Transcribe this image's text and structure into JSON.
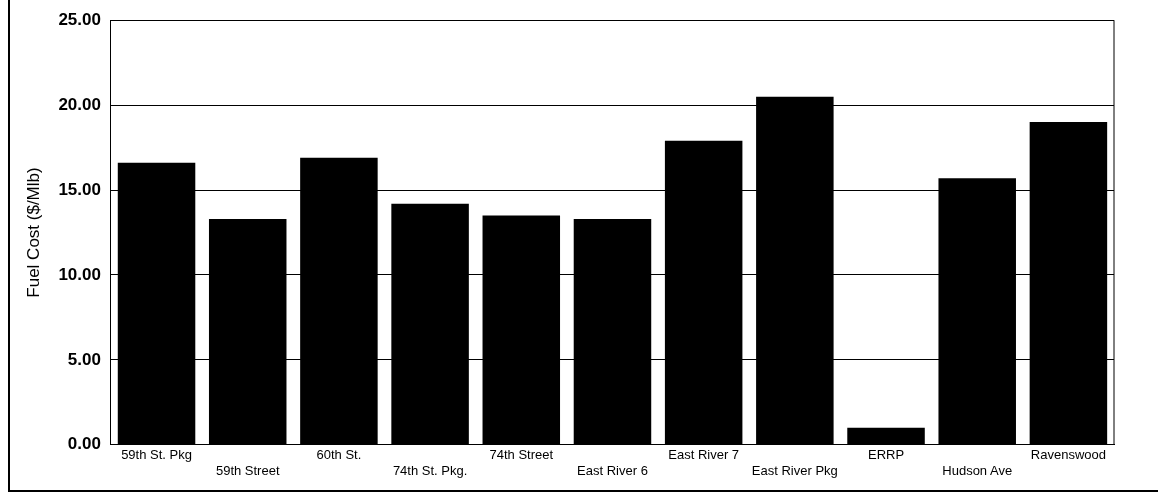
{
  "chart_data": {
    "type": "bar",
    "ylabel": "Fuel Cost ($/Mlb)",
    "categories": [
      "59th St. Pkg",
      "59th Street",
      "60th St.",
      "74th St. Pkg.",
      "74th Street",
      "East River 6",
      "East River 7",
      "East River Pkg",
      "ERRP",
      "Hudson Ave",
      "Ravenswood"
    ],
    "values": [
      16.6,
      13.3,
      16.9,
      14.2,
      13.5,
      13.3,
      17.9,
      20.5,
      1.0,
      15.7,
      19.0
    ],
    "color": "#000000",
    "ylim": [
      0,
      25
    ],
    "yticks": [
      {
        "value": 0,
        "label": "0.00"
      },
      {
        "value": 5,
        "label": "5.00"
      },
      {
        "value": 10,
        "label": "10.00"
      },
      {
        "value": 15,
        "label": "15.00"
      },
      {
        "value": 20,
        "label": "20.00"
      },
      {
        "value": 25,
        "label": "25.00"
      }
    ],
    "grid": "y"
  }
}
